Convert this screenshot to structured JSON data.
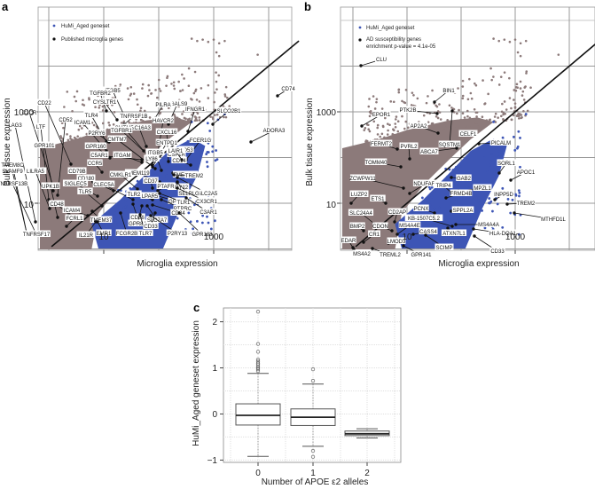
{
  "figure": {
    "panels": [
      "a",
      "b",
      "c"
    ]
  },
  "chart_data": [
    {
      "panel": "a",
      "type": "scatter",
      "xlabel": "Microglia expression",
      "ylabel": "Bulk tissue expression",
      "x_scale": "log10",
      "y_scale": "log10",
      "x_ticks": [
        "10",
        "1000"
      ],
      "y_ticks": [
        "10",
        "1000"
      ],
      "xlim": [
        1,
        100000
      ],
      "ylim": [
        1,
        100000
      ],
      "grid": true,
      "legend_position": "top-left",
      "legend": [
        {
          "label": "HuMi_Aged geneset",
          "color": "#3d55b5"
        },
        {
          "label": "Published microglia genes",
          "color": "#111111"
        }
      ],
      "background_color": "#8c7a7a",
      "reference_line": "y = x (identity)",
      "highlighted_genes": [
        "CD74",
        "ADORA3",
        "SLCO2B1",
        "IFNGR1",
        "LGALS9",
        "PILRA",
        "ITGB5",
        "TGFBR2",
        "CYSLTR1",
        "TNFRSF1B",
        "CD22",
        "C2CR",
        "CD52",
        "TLR4",
        "ICAM1",
        "SLC16A3",
        "CMTM5",
        "HAVCR2",
        "CXCL16",
        "FCER1G",
        "CD53",
        "LAG3",
        "LTF",
        "P2RY6",
        "TGFBR1",
        "CMTM7",
        "ENTPD1",
        "ITGB5",
        "CSF1R",
        "CD14",
        "LAIR1",
        "GPR101",
        "GPR160",
        "C5AR1",
        "ITGAM",
        "TMEM8C",
        "CCR5",
        "TMEM119",
        "LY86",
        "TMEM173",
        "TREM2",
        "SLC2A5",
        "SLAMF9",
        "LILRA5",
        "CD79B",
        "CD180",
        "CMKLR1",
        "CD37",
        "P2RY12",
        "SELPLG",
        "TNFRSF13B",
        "UPK1B",
        "SIGLEC5",
        "CLEC5A",
        "TLR5",
        "TLR2",
        "PTAFR",
        "GPR34",
        "CX3CR1",
        "CD48",
        "ICAM4",
        "CD86",
        "LPAR5",
        "TLR1",
        "PTPRC",
        "C3AR1",
        "FCRL1",
        "TMEM37",
        "GPR84",
        "SLC7A7",
        "CD84",
        "TNFRSF17",
        "IL21R",
        "EMR1",
        "FCGR2B",
        "TLR7",
        "CD33",
        "P2RY13",
        "GPR183"
      ]
    },
    {
      "panel": "b",
      "type": "scatter",
      "xlabel": "Microglia expression",
      "ylabel": "Bulk tissue expression",
      "x_scale": "log10",
      "y_scale": "log10",
      "x_ticks": [
        "10",
        "1000"
      ],
      "y_ticks": [
        "10",
        "1000"
      ],
      "xlim": [
        1,
        100000
      ],
      "ylim": [
        1,
        100000
      ],
      "grid": true,
      "legend_position": "top-left",
      "legend": [
        {
          "label": "HuMi_Aged geneset",
          "color": "#3d55b5"
        },
        {
          "label": "AD susceptibility genes",
          "color": "#111111"
        }
      ],
      "annotation": "enrichment p-value = 4.1e-05",
      "reference_line": "y = x (identity)",
      "highlighted_genes": [
        "CLU",
        "BIN1",
        "SQSTM1",
        "PTK2B",
        "EPOR1",
        "CELF1",
        "PICALM",
        "AP2A2",
        "SORL1",
        "APOC1",
        "FERMT2",
        "PVRL2",
        "ABCA7",
        "GAB2",
        "TOMM40",
        "MPZL1",
        "INPP5D",
        "ZCWPW11",
        "NDUFAF6",
        "TRIP4",
        "FRMD4B",
        "LUZP2",
        "ETS1",
        "TREM2",
        "PCNX",
        "SPPL2A",
        "MTHFD1L",
        "SLC24A4",
        "CD2AP",
        "KB-1507C5.2",
        "MS4A4A",
        "BMP2",
        "CDON",
        "MS4A4E",
        "CASS4",
        "ATXN7L1",
        "HLA-DQA1",
        "EDAR",
        "CR1",
        "LMOD3",
        "SCIMP",
        "CD33",
        "MS4A2",
        "TREML2",
        "GPR141"
      ]
    },
    {
      "panel": "c",
      "type": "box",
      "xlabel": "Number of APOE ε2 alleles",
      "ylabel": "HuMi_Aged geneset expression",
      "categories": [
        "0",
        "1",
        "2"
      ],
      "y_ticks": [
        "-1",
        "0",
        "1",
        "2"
      ],
      "ylim": [
        -1.05,
        2.3
      ],
      "grid": true,
      "boxes": [
        {
          "category": "0",
          "whisker_low": -0.92,
          "q1": -0.24,
          "median": -0.03,
          "q3": 0.22,
          "whisker_high": 0.88,
          "outliers": [
            0.93,
            0.97,
            1.0,
            1.03,
            1.07,
            1.1,
            1.14,
            1.18,
            1.35,
            1.52,
            2.22
          ]
        },
        {
          "category": "1",
          "whisker_low": -0.7,
          "q1": -0.25,
          "median": -0.07,
          "q3": 0.11,
          "whisker_high": 0.65,
          "outliers": [
            -0.93,
            -0.8,
            0.72,
            0.97
          ]
        },
        {
          "category": "2",
          "whisker_low": -0.52,
          "q1": -0.47,
          "median": -0.43,
          "q3": -0.37,
          "whisker_high": -0.32,
          "outliers": []
        }
      ]
    }
  ],
  "labels": {
    "a": {
      "letter": "a",
      "xlabel": "Microglia expression",
      "ylabel": "Bulk tissue expression",
      "xtick_10": "10",
      "xtick_1000": "1000",
      "ytick_10": "10",
      "ytick_1000": "1000",
      "legend_blue": "HuMi_Aged geneset",
      "legend_black": "Published microglia genes"
    },
    "b": {
      "letter": "b",
      "xlabel": "Microglia expression",
      "ylabel": "Bulk tissue expression",
      "xtick_10": "10",
      "xtick_1000": "1000",
      "ytick_10": "10",
      "ytick_1000": "1000",
      "legend_blue": "HuMi_Aged geneset",
      "legend_black_1": "AD susceptibility genes",
      "legend_black_2": "enrichment p-value = 4.1e-05"
    },
    "c": {
      "letter": "c",
      "xlabel": "Number of APOE ε2 alleles",
      "ylabel": "HuMi_Aged geneset expression",
      "ticks_y": [
        "-1",
        "0",
        "1",
        "2"
      ],
      "ticks_x": [
        "0",
        "1",
        "2"
      ]
    }
  },
  "colors": {
    "gene_cloud": "#8c7a7a",
    "humi_blue": "#3d55b5",
    "published": "#111111",
    "grid": "#c8c8c8",
    "identity_line": "#111111"
  }
}
